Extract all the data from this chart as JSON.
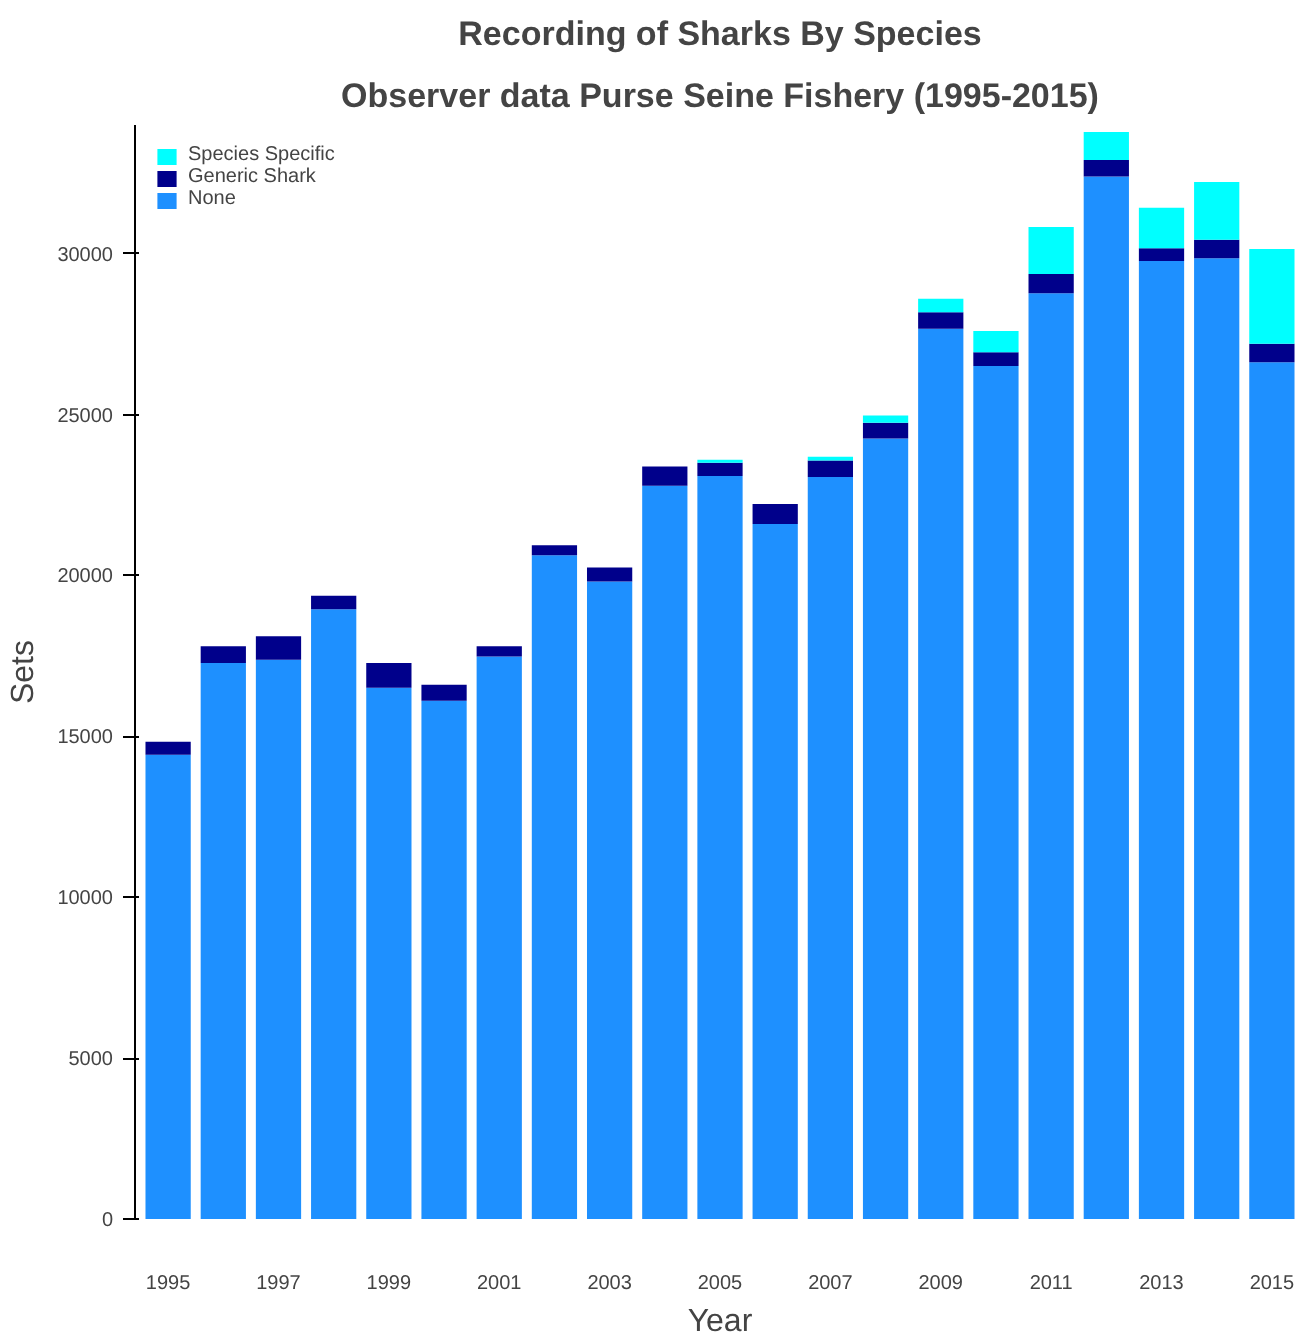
{
  "chart_data": {
    "type": "bar",
    "title": "Recording of Sharks By Species",
    "subtitle": "Observer data Purse Seine Fishery (1995-2015)",
    "xlabel": "Year",
    "ylabel": "Sets",
    "categories": [
      "1995",
      null,
      "1997",
      null,
      "1999",
      null,
      "2001",
      null,
      "2003",
      null,
      "2005",
      null,
      "2007",
      null,
      "2009",
      null,
      "2011",
      null,
      "2013",
      null,
      "2015"
    ],
    "stacked": true,
    "series": [
      {
        "name": "None",
        "color": "#1e90ff",
        "values": [
          14430,
          17280,
          17380,
          18950,
          16510,
          16110,
          17480,
          20630,
          19810,
          22790,
          23090,
          21600,
          23060,
          24260,
          27670,
          26510,
          28770,
          32400,
          29770,
          29860,
          26630
        ]
      },
      {
        "name": "Generic Shark",
        "color": "#00008b",
        "values": [
          400,
          520,
          730,
          420,
          770,
          490,
          320,
          310,
          440,
          600,
          410,
          620,
          510,
          490,
          510,
          430,
          600,
          510,
          400,
          570,
          570
        ]
      },
      {
        "name": "Species Specific",
        "color": "#00ffff",
        "values": [
          null,
          null,
          null,
          null,
          null,
          null,
          null,
          null,
          null,
          null,
          100,
          null,
          120,
          220,
          420,
          660,
          1460,
          870,
          1260,
          1800,
          2950
        ]
      }
    ],
    "ylim": [
      0,
      34000
    ],
    "yticks": [
      0,
      5000,
      10000,
      15000,
      20000,
      25000,
      30000
    ],
    "grid": false,
    "legend": "top left"
  }
}
